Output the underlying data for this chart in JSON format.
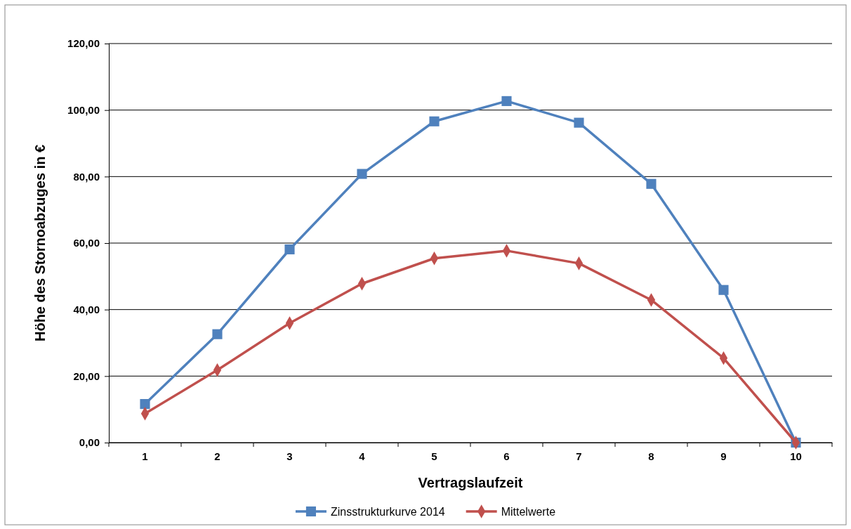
{
  "chart_data": {
    "type": "line",
    "xlabel": "Vertragslaufzeit",
    "ylabel": "Höhe des Stornoabzuges in €",
    "categories": [
      "1",
      "2",
      "3",
      "4",
      "5",
      "6",
      "7",
      "8",
      "9",
      "10"
    ],
    "series": [
      {
        "name": "Zinsstrukturkurve 2014",
        "color": "#4f81bd",
        "marker": "square",
        "values": [
          11.6,
          32.6,
          58.1,
          80.8,
          96.6,
          102.7,
          96.2,
          77.8,
          45.9,
          0
        ]
      },
      {
        "name": "Mittelwerte",
        "color": "#c0504d",
        "marker": "diamond",
        "values": [
          8.7,
          21.8,
          35.9,
          47.8,
          55.4,
          57.7,
          53.9,
          42.9,
          25.4,
          0
        ]
      }
    ],
    "ylim": [
      0,
      120
    ],
    "yticks": [
      {
        "value": 0,
        "label": "0,00"
      },
      {
        "value": 20,
        "label": "20,00"
      },
      {
        "value": 40,
        "label": "40,00"
      },
      {
        "value": 60,
        "label": "60,00"
      },
      {
        "value": 80,
        "label": "80,00"
      },
      {
        "value": 100,
        "label": "100,00"
      },
      {
        "value": 120,
        "label": "120,00"
      }
    ],
    "grid": "y",
    "legend": "bottom",
    "line_style": "solid"
  }
}
